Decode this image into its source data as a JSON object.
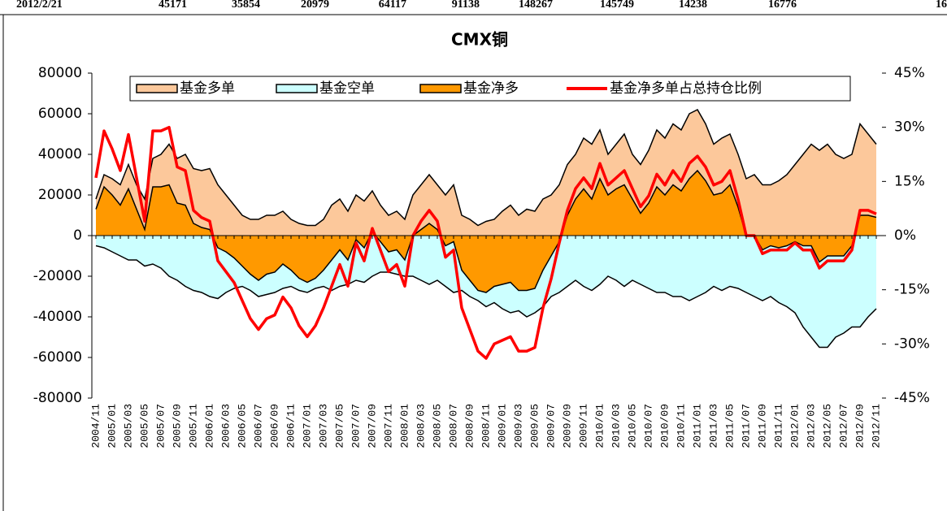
{
  "header_row": [
    "2012/2/21",
    "45171",
    "35854",
    "20979",
    "64117",
    "91138",
    "148267",
    "145749",
    "14238",
    "16776",
    "16"
  ],
  "chart_data": {
    "type": "area",
    "title": "CMX铜",
    "categories": [
      "2004/11",
      null,
      "2005/01",
      null,
      "2005/03",
      null,
      "2005/05",
      null,
      "2005/07",
      null,
      "2005/09",
      null,
      "2005/11",
      null,
      "2006/01",
      null,
      "2006/03",
      null,
      "2006/05",
      null,
      "2006/07",
      null,
      "2006/09",
      null,
      "2006/11",
      null,
      "2007/01",
      null,
      "2007/03",
      null,
      "2007/05",
      null,
      "2007/07",
      null,
      "2007/09",
      null,
      "2007/11",
      null,
      "2008/01",
      null,
      "2008/03",
      null,
      "2008/05",
      null,
      "2008/07",
      null,
      "2008/09",
      null,
      "2008/11",
      null,
      "2009/01",
      null,
      "2009/03",
      null,
      "2009/05",
      null,
      "2009/07",
      null,
      "2009/09",
      null,
      "2009/11",
      null,
      "2010/01",
      null,
      "2010/03",
      null,
      "2010/05",
      null,
      "2010/07",
      null,
      "2010/09",
      null,
      "2010/11",
      null,
      "2011/01",
      null,
      "2011/03",
      null,
      "2011/05",
      null,
      "2011/07",
      null,
      "2011/09",
      null,
      "2011/11",
      null,
      "2012/01",
      null,
      "2012/03",
      null,
      "2012/05",
      null,
      "2012/07",
      null,
      "2012/09",
      null,
      "2012/11"
    ],
    "series": [
      {
        "name": "基金多单",
        "color": "#fcc89b",
        "values": [
          18000,
          30000,
          28000,
          25000,
          35000,
          25000,
          18000,
          38000,
          40000,
          45000,
          38000,
          40000,
          33000,
          32000,
          33000,
          25000,
          20000,
          15000,
          10000,
          8000,
          8000,
          10000,
          10000,
          12000,
          8000,
          6000,
          5000,
          5000,
          8000,
          15000,
          18000,
          12000,
          20000,
          17000,
          22000,
          15000,
          10000,
          12000,
          8000,
          20000,
          25000,
          30000,
          25000,
          20000,
          25000,
          10000,
          8000,
          5000,
          7000,
          8000,
          12000,
          15000,
          10000,
          13000,
          12000,
          18000,
          20000,
          25000,
          35000,
          40000,
          48000,
          45000,
          52000,
          40000,
          45000,
          50000,
          40000,
          35000,
          42000,
          52000,
          48000,
          55000,
          52000,
          60000,
          62000,
          55000,
          45000,
          48000,
          50000,
          40000,
          28000,
          30000,
          25000,
          25000,
          27000,
          30000,
          35000,
          40000,
          45000,
          42000,
          45000,
          40000,
          38000,
          40000,
          55000,
          50000,
          45000
        ]
      },
      {
        "name": "基金空单",
        "color": "#ccffff",
        "values": [
          -5000,
          -6000,
          -8000,
          -10000,
          -12000,
          -12000,
          -15000,
          -14000,
          -16000,
          -20000,
          -22000,
          -25000,
          -27000,
          -28000,
          -30000,
          -31000,
          -28000,
          -26000,
          -25000,
          -27000,
          -30000,
          -29000,
          -28000,
          -26000,
          -25000,
          -27000,
          -28000,
          -26000,
          -25000,
          -27000,
          -25000,
          -24000,
          -22000,
          -23000,
          -20000,
          -18000,
          -18000,
          -19000,
          -20000,
          -20000,
          -22000,
          -24000,
          -22000,
          -25000,
          -28000,
          -27000,
          -30000,
          -32000,
          -35000,
          -33000,
          -36000,
          -38000,
          -37000,
          -40000,
          -38000,
          -35000,
          -30000,
          -28000,
          -25000,
          -22000,
          -25000,
          -27000,
          -24000,
          -20000,
          -22000,
          -25000,
          -22000,
          -24000,
          -26000,
          -28000,
          -28000,
          -30000,
          -30000,
          -32000,
          -30000,
          -28000,
          -25000,
          -27000,
          -25000,
          -26000,
          -28000,
          -30000,
          -32000,
          -30000,
          -33000,
          -35000,
          -38000,
          -45000,
          -50000,
          -55000,
          -55000,
          -50000,
          -48000,
          -45000,
          -45000,
          -40000,
          -36000
        ]
      },
      {
        "name": "基金净多",
        "color": "#ff9900",
        "values": [
          13000,
          24000,
          20000,
          15000,
          23000,
          13000,
          3000,
          24000,
          24000,
          25000,
          16000,
          15000,
          6000,
          4000,
          3000,
          -6000,
          -8000,
          -11000,
          -15000,
          -19000,
          -22000,
          -19000,
          -18000,
          -14000,
          -17000,
          -21000,
          -23000,
          -21000,
          -17000,
          -12000,
          -7000,
          -12000,
          -2000,
          -6000,
          2000,
          -3000,
          -8000,
          -7000,
          -12000,
          0,
          3000,
          6000,
          3000,
          -5000,
          -3000,
          -17000,
          -22000,
          -27000,
          -28000,
          -25000,
          -24000,
          -23000,
          -27000,
          -27000,
          -26000,
          -17000,
          -10000,
          -3000,
          10000,
          18000,
          23000,
          18000,
          28000,
          20000,
          23000,
          25000,
          18000,
          11000,
          16000,
          24000,
          20000,
          25000,
          22000,
          28000,
          32000,
          27000,
          20000,
          21000,
          25000,
          14000,
          0,
          0,
          -7000,
          -5000,
          -6000,
          -5000,
          -3000,
          -5000,
          -5000,
          -13000,
          -10000,
          -10000,
          -10000,
          -5000,
          10000,
          10000,
          9000
        ]
      },
      {
        "name": "基金净多单占总持仓比例",
        "color": "#ff0000",
        "axis": "y2",
        "values": [
          16,
          29,
          24,
          18,
          28,
          16,
          4,
          29,
          29,
          30,
          19,
          18,
          7,
          5,
          4,
          -7,
          -10,
          -13,
          -18,
          -23,
          -26,
          -23,
          -22,
          -17,
          -20,
          -25,
          -28,
          -25,
          -20,
          -14,
          -8,
          -14,
          -2,
          -7,
          2,
          -4,
          -10,
          -8,
          -14,
          0,
          4,
          7,
          4,
          -6,
          -4,
          -20,
          -26,
          -32,
          -34,
          -30,
          -29,
          -28,
          -32,
          -32,
          -31,
          -20,
          -12,
          -2,
          7,
          13,
          16,
          13,
          20,
          14,
          16,
          18,
          13,
          8,
          11,
          17,
          14,
          18,
          15,
          20,
          22,
          19,
          14,
          15,
          18,
          10,
          0,
          0,
          -5,
          -4,
          -4,
          -4,
          -2,
          -4,
          -4,
          -9,
          -7,
          -7,
          -7,
          -4,
          7,
          7,
          6
        ]
      }
    ],
    "ylim": [
      -80000,
      80000
    ],
    "yticks": [
      -80000,
      -60000,
      -40000,
      -20000,
      0,
      20000,
      40000,
      60000,
      80000
    ],
    "y2lim": [
      -45,
      45
    ],
    "y2ticks": [
      {
        "value": -45,
        "label": "-45%"
      },
      {
        "value": -30,
        "label": "-30%"
      },
      {
        "value": -15,
        "label": "-15%"
      },
      {
        "value": 0,
        "label": "0%"
      },
      {
        "value": 15,
        "label": "15%"
      },
      {
        "value": 30,
        "label": "30%"
      },
      {
        "value": 45,
        "label": "45%"
      }
    ],
    "legend": "top"
  }
}
